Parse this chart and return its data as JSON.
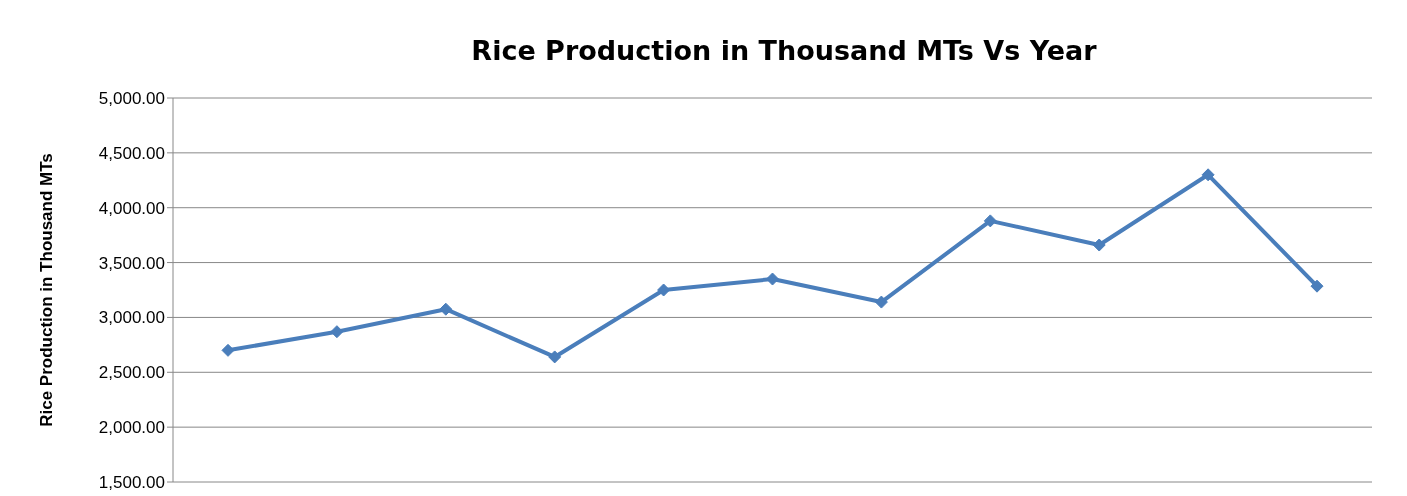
{
  "chart_data": {
    "type": "line",
    "title": "Rice Production in Thousand MTs Vs Year",
    "ylabel": "Rice Production in Thousand MTs",
    "categories": [
      null,
      null,
      null,
      null,
      null,
      null,
      null,
      null,
      null,
      null,
      null
    ],
    "series": [
      {
        "color": "#4a7ebb",
        "values": [
          2700,
          2870,
          3075,
          2640,
          3250,
          3350,
          3140,
          3880,
          3660,
          4300,
          3285
        ]
      }
    ],
    "ylim": [
      1500,
      5000
    ],
    "yticks": [
      {
        "value": 1500,
        "label": "1,500.00"
      },
      {
        "value": 2000,
        "label": "2,000.00"
      },
      {
        "value": 2500,
        "label": "2,500.00"
      },
      {
        "value": 3000,
        "label": "3,000.00"
      },
      {
        "value": 3500,
        "label": "3,500.00"
      },
      {
        "value": 4000,
        "label": "4,000.00"
      },
      {
        "value": 4500,
        "label": "4,500.00"
      },
      {
        "value": 5000,
        "label": "5,000.00"
      }
    ],
    "grid": "y",
    "marker": "diamond",
    "line_style": "solid"
  }
}
